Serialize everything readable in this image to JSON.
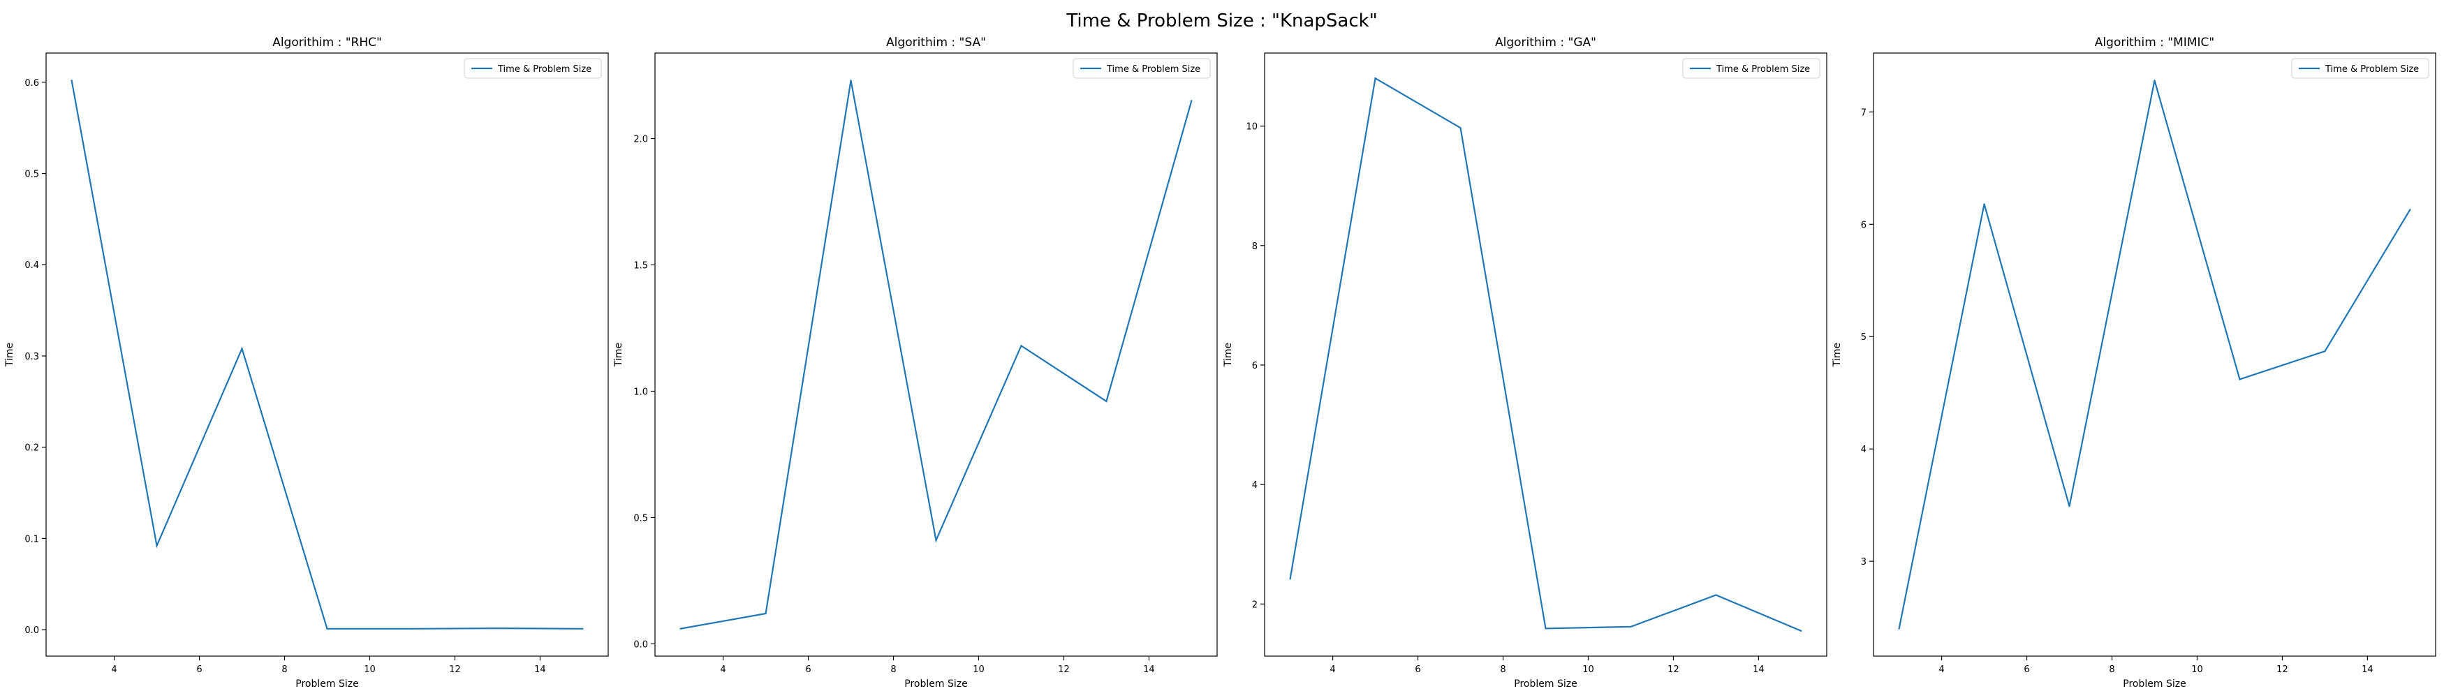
{
  "figure": {
    "title": "Time & Problem Size : \"KnapSack\""
  },
  "chart_data": [
    {
      "type": "line",
      "title": "Algorithim : \"RHC\"",
      "xlabel": "Problem Size",
      "ylabel": "Time",
      "x": [
        3,
        5,
        7,
        9,
        11,
        13,
        15
      ],
      "series": [
        {
          "name": "Time & Problem Size",
          "values": [
            0.602,
            0.092,
            0.308,
            0.001,
            0.001,
            0.0015,
            0.001
          ],
          "color": "#1f77b4"
        }
      ],
      "xlim": [
        2.4,
        15.6
      ],
      "ylim": [
        -0.029,
        0.632
      ],
      "xticks": [
        4,
        6,
        8,
        10,
        12,
        14
      ],
      "yticks": [
        0.0,
        0.1,
        0.2,
        0.3,
        0.4,
        0.5,
        0.6
      ],
      "ytick_labels": [
        "0.0",
        "0.1",
        "0.2",
        "0.3",
        "0.4",
        "0.5",
        "0.6"
      ],
      "legend": "top-right",
      "grid": false
    },
    {
      "type": "line",
      "title": "Algorithim : \"SA\"",
      "xlabel": "Problem Size",
      "ylabel": "Time",
      "x": [
        3,
        5,
        7,
        9,
        11,
        13,
        15
      ],
      "series": [
        {
          "name": "Time & Problem Size",
          "values": [
            0.06,
            0.12,
            2.23,
            0.41,
            1.18,
            0.96,
            2.15
          ],
          "color": "#1f77b4"
        }
      ],
      "xlim": [
        2.4,
        15.6
      ],
      "ylim": [
        -0.0485,
        2.3385
      ],
      "xticks": [
        4,
        6,
        8,
        10,
        12,
        14
      ],
      "yticks": [
        0.0,
        0.5,
        1.0,
        1.5,
        2.0
      ],
      "ytick_labels": [
        "0.0",
        "0.5",
        "1.0",
        "1.5",
        "2.0"
      ],
      "legend": "top-right",
      "grid": false
    },
    {
      "type": "line",
      "title": "Algorithim : \"GA\"",
      "xlabel": "Problem Size",
      "ylabel": "Time",
      "x": [
        3,
        5,
        7,
        9,
        11,
        13,
        15
      ],
      "series": [
        {
          "name": "Time & Problem Size",
          "values": [
            2.42,
            10.8,
            9.97,
            1.59,
            1.62,
            2.15,
            1.55
          ],
          "color": "#1f77b4"
        }
      ],
      "xlim": [
        2.4,
        15.6
      ],
      "ylim": [
        1.1275,
        11.2225
      ],
      "xticks": [
        4,
        6,
        8,
        10,
        12,
        14
      ],
      "yticks": [
        2,
        4,
        6,
        8,
        10
      ],
      "ytick_labels": [
        "2",
        "4",
        "6",
        "8",
        "10"
      ],
      "legend": "top-right",
      "grid": false
    },
    {
      "type": "line",
      "title": "Algorithim : \"MIMIC\"",
      "xlabel": "Problem Size",
      "ylabel": "Time",
      "x": [
        3,
        5,
        7,
        9,
        11,
        13,
        15
      ],
      "series": [
        {
          "name": "Time & Problem Size",
          "values": [
            2.4,
            6.18,
            3.49,
            7.28,
            4.62,
            4.87,
            6.13
          ],
          "color": "#1f77b4"
        }
      ],
      "xlim": [
        2.4,
        15.6
      ],
      "ylim": [
        2.156,
        7.524
      ],
      "xticks": [
        4,
        6,
        8,
        10,
        12,
        14
      ],
      "yticks": [
        3,
        4,
        5,
        6,
        7
      ],
      "ytick_labels": [
        "3",
        "4",
        "5",
        "6",
        "7"
      ],
      "legend": "top-right",
      "grid": false
    }
  ]
}
